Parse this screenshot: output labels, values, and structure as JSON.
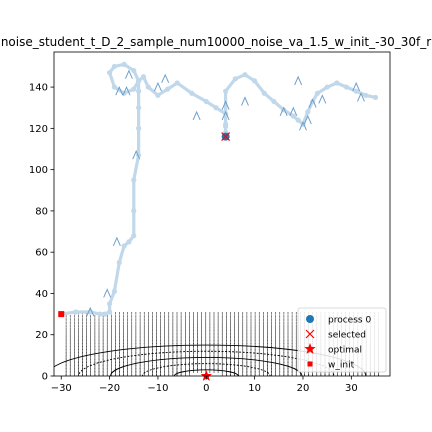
{
  "chart_data": {
    "type": "scatter",
    "title": "noise_student_t_D_2_sample_num10000_noise_va_1.5_w_init_-30_30f_r",
    "xlabel": "",
    "ylabel": "",
    "xlim": [
      -31.5,
      38
    ],
    "ylim": [
      0,
      157
    ],
    "xticks": [
      -30,
      -20,
      -10,
      0,
      10,
      20,
      30
    ],
    "yticks": [
      0,
      20,
      40,
      60,
      80,
      100,
      120,
      140
    ],
    "grid": false,
    "legend_position": "bottom-right",
    "series": [
      {
        "name": "process 0",
        "kind": "trajectory",
        "color": "#c0d8ea",
        "x": [
          -30,
          -27,
          -24,
          -22,
          -21,
          -20,
          -20,
          -19,
          -18,
          -17,
          -16,
          -15,
          -15,
          -15,
          -14,
          -14,
          -14,
          -14,
          -14,
          -15,
          -17,
          -19,
          -20,
          -19,
          -17,
          -15,
          -14,
          -13,
          -12,
          -10,
          -8,
          -6,
          -3,
          0,
          2,
          4,
          4,
          4,
          4,
          4,
          4,
          6,
          8,
          10,
          12,
          14,
          16,
          18,
          19,
          20,
          21,
          22,
          23,
          25,
          27,
          29,
          31,
          33,
          35
        ],
        "y": [
          30,
          31,
          31,
          30,
          30,
          31,
          35,
          41,
          55,
          63,
          65,
          68,
          80,
          95,
          107,
          120,
          130,
          138,
          143,
          148,
          151,
          150,
          147,
          140,
          137,
          139,
          143,
          145,
          140,
          136,
          139,
          142,
          137,
          133,
          130,
          127,
          122,
          118,
          116,
          121,
          138,
          144,
          146,
          143,
          137,
          133,
          129,
          126,
          124,
          122,
          128,
          133,
          137,
          140,
          142,
          140,
          138,
          136,
          135
        ]
      },
      {
        "name": "selected",
        "kind": "marker",
        "marker": "x",
        "color": "#ff0000",
        "x": [
          4
        ],
        "y": [
          116
        ]
      },
      {
        "name": "optimal",
        "kind": "marker",
        "marker": "star",
        "color": "#ff0000",
        "x": [
          0
        ],
        "y": [
          0
        ]
      },
      {
        "name": "w_init",
        "kind": "marker",
        "marker": "square",
        "color": "#ff0000",
        "x": [
          -30
        ],
        "y": [
          30
        ]
      }
    ],
    "direction_arrows": [
      {
        "x": -24,
        "y": 31
      },
      {
        "x": -20.5,
        "y": 40
      },
      {
        "x": -18.5,
        "y": 65
      },
      {
        "x": -14.5,
        "y": 107
      },
      {
        "x": -18,
        "y": 138
      },
      {
        "x": -16.5,
        "y": 138
      },
      {
        "x": -16,
        "y": 146
      },
      {
        "x": -10,
        "y": 140
      },
      {
        "x": -8.5,
        "y": 144
      },
      {
        "x": -2,
        "y": 126
      },
      {
        "x": 4,
        "y": 126
      },
      {
        "x": 4,
        "y": 131
      },
      {
        "x": 8,
        "y": 133
      },
      {
        "x": 16,
        "y": 128
      },
      {
        "x": 18,
        "y": 128
      },
      {
        "x": 20,
        "y": 121
      },
      {
        "x": 21,
        "y": 124
      },
      {
        "x": 22,
        "y": 132
      },
      {
        "x": 24,
        "y": 134
      },
      {
        "x": 19,
        "y": 143
      },
      {
        "x": 31,
        "y": 140
      },
      {
        "x": 32,
        "y": 135
      }
    ],
    "contour": {
      "center": [
        0,
        0
      ],
      "levels": [
        3,
        6,
        9,
        12,
        15
      ],
      "color": "#000000"
    },
    "legend": [
      "process 0",
      "selected",
      "optimal",
      "w_init"
    ],
    "colors": {
      "process": "#1f77b4",
      "trajectory": "#c0d8ea",
      "arrow": "#6f9fc9",
      "marker": "#ff0000",
      "vector_field": "#000000"
    }
  }
}
